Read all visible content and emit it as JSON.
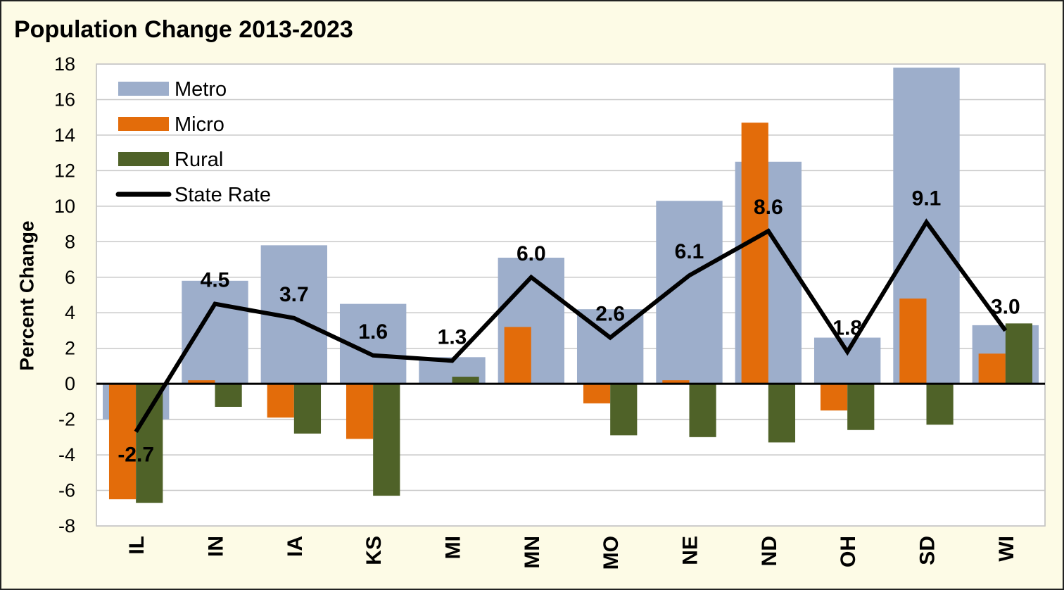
{
  "chart_data": {
    "type": "bar",
    "title": "Population Change 2013-2023",
    "y_label": "Percent Change",
    "categories": [
      "IL",
      "IN",
      "IA",
      "KS",
      "MI",
      "MN",
      "MO",
      "NE",
      "ND",
      "OH",
      "SD",
      "WI"
    ],
    "series": [
      {
        "name": "Metro",
        "type": "bar",
        "color": "#9daecb",
        "values": [
          -2.0,
          5.8,
          7.8,
          4.5,
          1.5,
          7.1,
          4.2,
          10.3,
          12.5,
          2.6,
          17.8,
          3.3
        ]
      },
      {
        "name": "Micro",
        "type": "bar",
        "color": "#e36c0a",
        "values": [
          -6.5,
          0.2,
          -1.9,
          -3.1,
          0,
          3.2,
          -1.1,
          0.2,
          14.7,
          -1.5,
          4.8,
          1.7
        ]
      },
      {
        "name": "Rural",
        "type": "bar",
        "color": "#4f6228",
        "values": [
          -6.7,
          -1.3,
          -2.8,
          -6.3,
          0.4,
          0,
          -2.9,
          -3.0,
          -3.3,
          -2.6,
          -2.3,
          3.4
        ]
      },
      {
        "name": "State Rate",
        "type": "line",
        "color": "#000000",
        "values": [
          -2.7,
          4.5,
          3.7,
          1.6,
          1.3,
          6.0,
          2.6,
          6.1,
          8.6,
          1.8,
          9.1,
          3.0
        ],
        "value_labels": [
          "-2.7",
          "4.5",
          "3.7",
          "1.6",
          "1.3",
          "6.0",
          "2.6",
          "6.1",
          "8.6",
          "1.8",
          "9.1",
          "3.0"
        ]
      }
    ],
    "ylim": [
      -8,
      18
    ],
    "yticks": [
      -8,
      -6,
      -4,
      -2,
      0,
      2,
      4,
      6,
      8,
      10,
      12,
      14,
      16,
      18
    ],
    "grid": true,
    "legend": "top-left"
  }
}
